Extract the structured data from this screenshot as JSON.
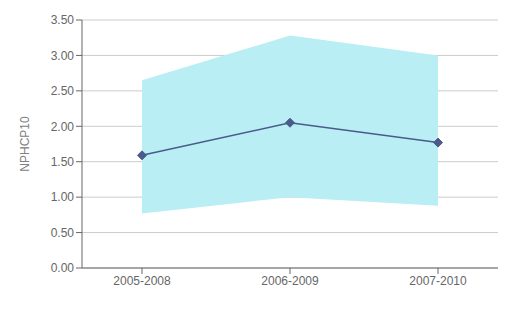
{
  "chart_data": {
    "type": "line",
    "ylabel": "NPHCP10",
    "categories": [
      "2005-2008",
      "2006-2009",
      "2007-2010"
    ],
    "values": [
      1.59,
      2.05,
      1.77
    ],
    "band": {
      "lower": [
        0.77,
        1.0,
        0.88
      ],
      "upper": [
        2.65,
        3.28,
        3.0
      ],
      "color": "#b8eef4"
    },
    "color": "#4a5a8a",
    "marker": "diamond",
    "ylim": [
      0.0,
      3.5
    ],
    "yticks": [
      {
        "value": 0.0,
        "label": "0.00"
      },
      {
        "value": 0.5,
        "label": "0.50"
      },
      {
        "value": 1.0,
        "label": "1.00"
      },
      {
        "value": 1.5,
        "label": "1.50"
      },
      {
        "value": 2.0,
        "label": "2.00"
      },
      {
        "value": 2.5,
        "label": "2.50"
      },
      {
        "value": 3.0,
        "label": "3.00"
      },
      {
        "value": 3.5,
        "label": "3.50"
      }
    ],
    "grid": true
  }
}
